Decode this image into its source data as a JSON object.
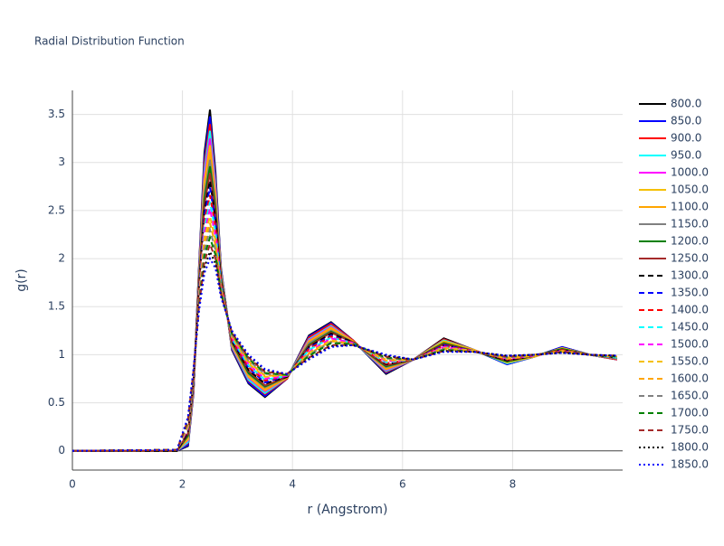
{
  "chart_data": {
    "type": "line",
    "title": "Radial Distribution Function",
    "x_label": "r (Angstrom)",
    "y_label": "g(r)",
    "xlim": [
      0,
      10
    ],
    "ylim": [
      -0.2,
      3.75
    ],
    "xticks": [
      0,
      2,
      4,
      6,
      8
    ],
    "yticks": [
      0,
      0.5,
      1,
      1.5,
      2,
      2.5,
      3,
      3.5
    ],
    "grid": true,
    "legend": "right",
    "x": [
      0,
      1.9,
      2.1,
      2.2,
      2.3,
      2.4,
      2.5,
      2.6,
      2.7,
      2.9,
      3.2,
      3.5,
      3.9,
      4.3,
      4.7,
      5.1,
      5.7,
      6.2,
      6.75,
      7.3,
      7.9,
      8.4,
      8.9,
      9.4,
      9.9
    ],
    "series": [
      {
        "name": "800.0",
        "color": "#000000",
        "dash": "solid",
        "values": [
          0,
          0,
          0.05,
          0.6,
          1.9,
          3.1,
          3.55,
          2.9,
          1.9,
          1.05,
          0.7,
          0.56,
          0.75,
          1.2,
          1.34,
          1.15,
          0.8,
          0.95,
          1.17,
          1.05,
          0.9,
          0.98,
          1.08,
          1,
          0.95
        ]
      },
      {
        "name": "850.0",
        "color": "#0000ff",
        "dash": "solid",
        "values": [
          0,
          0,
          0.06,
          0.61,
          1.88,
          3.04,
          3.48,
          2.85,
          1.89,
          1.06,
          0.71,
          0.57,
          0.75,
          1.19,
          1.33,
          1.15,
          0.81,
          0.95,
          1.16,
          1.05,
          0.9,
          0.98,
          1.08,
          1,
          0.95
        ]
      },
      {
        "name": "900.0",
        "color": "#ff0000",
        "dash": "solid",
        "values": [
          0,
          0,
          0.08,
          0.62,
          1.86,
          2.98,
          3.4,
          2.8,
          1.87,
          1.07,
          0.73,
          0.59,
          0.75,
          1.18,
          1.32,
          1.15,
          0.82,
          0.95,
          1.16,
          1.05,
          0.91,
          0.98,
          1.07,
          1,
          0.95
        ]
      },
      {
        "name": "950.0",
        "color": "#00ffff",
        "dash": "solid",
        "values": [
          0,
          0,
          0.09,
          0.64,
          1.84,
          2.92,
          3.33,
          2.76,
          1.86,
          1.08,
          0.74,
          0.6,
          0.76,
          1.16,
          1.3,
          1.14,
          0.83,
          0.95,
          1.15,
          1.05,
          0.91,
          0.98,
          1.07,
          1,
          0.96
        ]
      },
      {
        "name": "1000.0",
        "color": "#ff00ff",
        "dash": "solid",
        "values": [
          0,
          0,
          0.11,
          0.65,
          1.81,
          2.86,
          3.25,
          2.71,
          1.84,
          1.09,
          0.76,
          0.62,
          0.76,
          1.15,
          1.29,
          1.14,
          0.84,
          0.95,
          1.14,
          1.05,
          0.92,
          0.98,
          1.07,
          1,
          0.96
        ]
      },
      {
        "name": "1050.0",
        "color": "#f5c000",
        "dash": "solid",
        "values": [
          0,
          0,
          0.12,
          0.66,
          1.79,
          2.8,
          3.18,
          2.66,
          1.83,
          1.1,
          0.77,
          0.63,
          0.76,
          1.14,
          1.28,
          1.14,
          0.85,
          0.95,
          1.14,
          1.05,
          0.92,
          0.98,
          1.07,
          1,
          0.96
        ]
      },
      {
        "name": "1100.0",
        "color": "#ffa500",
        "dash": "solid",
        "values": [
          0,
          0,
          0.14,
          0.67,
          1.77,
          2.74,
          3.11,
          2.61,
          1.81,
          1.11,
          0.79,
          0.64,
          0.76,
          1.13,
          1.27,
          1.14,
          0.86,
          0.95,
          1.13,
          1.04,
          0.93,
          0.99,
          1.06,
          1,
          0.96
        ]
      },
      {
        "name": "1150.0",
        "color": "#808080",
        "dash": "solid",
        "values": [
          0,
          0,
          0.15,
          0.68,
          1.75,
          2.68,
          3.03,
          2.57,
          1.8,
          1.12,
          0.8,
          0.66,
          0.77,
          1.12,
          1.25,
          1.13,
          0.87,
          0.95,
          1.12,
          1.04,
          0.93,
          0.99,
          1.06,
          1,
          0.96
        ]
      },
      {
        "name": "1200.0",
        "color": "#008000",
        "dash": "solid",
        "values": [
          0,
          0,
          0.16,
          0.7,
          1.73,
          2.62,
          2.96,
          2.52,
          1.79,
          1.13,
          0.81,
          0.67,
          0.77,
          1.1,
          1.24,
          1.13,
          0.88,
          0.95,
          1.12,
          1.04,
          0.93,
          0.99,
          1.06,
          1,
          0.97
        ]
      },
      {
        "name": "1250.0",
        "color": "#a52a2a",
        "dash": "solid",
        "values": [
          0,
          0,
          0.18,
          0.71,
          1.71,
          2.56,
          2.89,
          2.47,
          1.77,
          1.14,
          0.83,
          0.68,
          0.77,
          1.09,
          1.23,
          1.13,
          0.89,
          0.95,
          1.11,
          1.04,
          0.94,
          0.99,
          1.05,
          1,
          0.97
        ]
      },
      {
        "name": "1300.0",
        "color": "#000000",
        "dash": "dash",
        "values": [
          0,
          0,
          0.19,
          0.72,
          1.69,
          2.5,
          2.81,
          2.42,
          1.76,
          1.15,
          0.84,
          0.7,
          0.77,
          1.08,
          1.22,
          1.13,
          0.9,
          0.95,
          1.1,
          1.04,
          0.94,
          0.99,
          1.05,
          1,
          0.97
        ]
      },
      {
        "name": "1350.0",
        "color": "#0000ff",
        "dash": "dash",
        "values": [
          0,
          0.01,
          0.21,
          0.73,
          1.66,
          2.45,
          2.74,
          2.38,
          1.74,
          1.16,
          0.86,
          0.71,
          0.78,
          1.07,
          1.2,
          1.12,
          0.91,
          0.95,
          1.1,
          1.04,
          0.95,
          0.99,
          1.05,
          1,
          0.97
        ]
      },
      {
        "name": "1400.0",
        "color": "#ff0000",
        "dash": "dash",
        "values": [
          0,
          0.01,
          0.22,
          0.74,
          1.64,
          2.39,
          2.66,
          2.33,
          1.73,
          1.16,
          0.87,
          0.73,
          0.78,
          1.06,
          1.19,
          1.12,
          0.91,
          0.95,
          1.09,
          1.04,
          0.95,
          0.99,
          1.05,
          1,
          0.97
        ]
      },
      {
        "name": "1450.0",
        "color": "#00ffff",
        "dash": "dash",
        "values": [
          0,
          0.01,
          0.24,
          0.75,
          1.62,
          2.33,
          2.59,
          2.28,
          1.71,
          1.17,
          0.89,
          0.74,
          0.78,
          1.05,
          1.18,
          1.12,
          0.92,
          0.95,
          1.08,
          1.04,
          0.96,
          0.99,
          1.04,
          1,
          0.97
        ]
      },
      {
        "name": "1500.0",
        "color": "#ff00ff",
        "dash": "dash",
        "values": [
          0,
          0.01,
          0.25,
          0.77,
          1.6,
          2.27,
          2.52,
          2.23,
          1.7,
          1.18,
          0.9,
          0.75,
          0.78,
          1.03,
          1.17,
          1.12,
          0.93,
          0.95,
          1.08,
          1.04,
          0.96,
          0.99,
          1.04,
          1,
          0.98
        ]
      },
      {
        "name": "1550.0",
        "color": "#f5c000",
        "dash": "dash",
        "values": [
          0,
          0.01,
          0.26,
          0.78,
          1.58,
          2.21,
          2.44,
          2.19,
          1.69,
          1.19,
          0.91,
          0.77,
          0.79,
          1.02,
          1.15,
          1.11,
          0.94,
          0.95,
          1.07,
          1.04,
          0.96,
          0.99,
          1.04,
          1,
          0.98
        ]
      },
      {
        "name": "1600.0",
        "color": "#ffa500",
        "dash": "dash",
        "values": [
          0,
          0.01,
          0.28,
          0.79,
          1.56,
          2.15,
          2.37,
          2.14,
          1.67,
          1.2,
          0.93,
          0.78,
          0.79,
          1.01,
          1.14,
          1.11,
          0.95,
          0.95,
          1.06,
          1.03,
          0.97,
          1,
          1.03,
          1,
          0.98
        ]
      },
      {
        "name": "1650.0",
        "color": "#808080",
        "dash": "dash",
        "values": [
          0,
          0.01,
          0.29,
          0.8,
          1.54,
          2.09,
          2.3,
          2.09,
          1.66,
          1.21,
          0.94,
          0.8,
          0.79,
          1,
          1.13,
          1.11,
          0.96,
          0.95,
          1.06,
          1.03,
          0.97,
          1,
          1.03,
          1,
          0.98
        ]
      },
      {
        "name": "1700.0",
        "color": "#008000",
        "dash": "dash",
        "values": [
          0,
          0.01,
          0.31,
          0.81,
          1.51,
          2.03,
          2.22,
          2.04,
          1.64,
          1.22,
          0.96,
          0.81,
          0.79,
          0.99,
          1.12,
          1.11,
          0.97,
          0.95,
          1.05,
          1.03,
          0.98,
          1,
          1.03,
          1,
          0.98
        ]
      },
      {
        "name": "1750.0",
        "color": "#a52a2a",
        "dash": "dash",
        "values": [
          0,
          0.01,
          0.32,
          0.83,
          1.49,
          1.97,
          2.15,
          2,
          1.63,
          1.23,
          0.97,
          0.82,
          0.8,
          0.97,
          1.1,
          1.1,
          0.98,
          0.95,
          1.04,
          1.03,
          0.98,
          1,
          1.03,
          1,
          0.99
        ]
      },
      {
        "name": "1800.0",
        "color": "#000000",
        "dash": "dot",
        "values": [
          0,
          0.01,
          0.34,
          0.84,
          1.47,
          1.91,
          2.07,
          1.95,
          1.61,
          1.24,
          0.99,
          0.84,
          0.8,
          0.96,
          1.09,
          1.1,
          0.99,
          0.95,
          1.04,
          1.03,
          0.99,
          1,
          1.02,
          1,
          0.99
        ]
      },
      {
        "name": "1850.0",
        "color": "#0000ff",
        "dash": "dot",
        "values": [
          0,
          0.01,
          0.35,
          0.85,
          1.45,
          1.85,
          2,
          1.9,
          1.6,
          1.25,
          1,
          0.85,
          0.8,
          0.95,
          1.08,
          1.1,
          1,
          0.95,
          1.03,
          1.03,
          0.99,
          1,
          1.02,
          1,
          0.99
        ]
      }
    ]
  }
}
